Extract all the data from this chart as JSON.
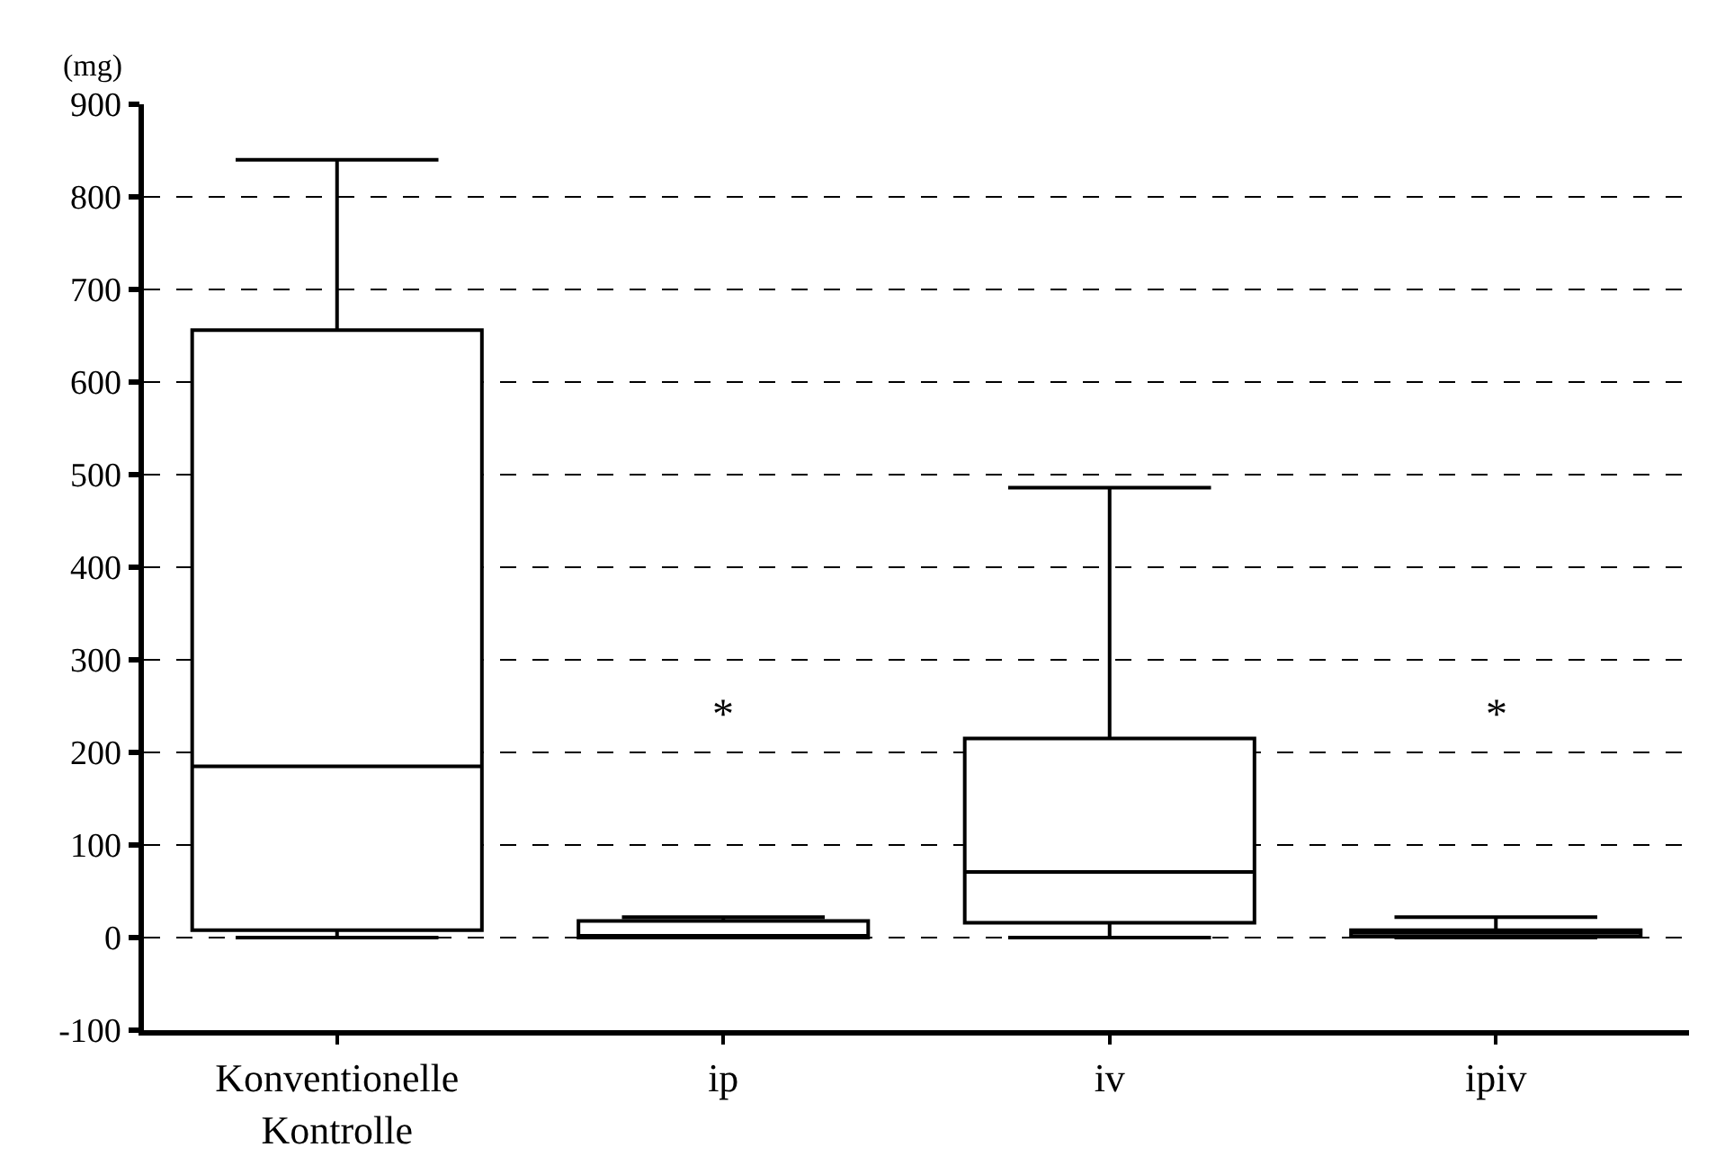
{
  "chart_data": {
    "type": "box",
    "ylabel": "(mg)",
    "categories": [
      "Konventionelle\nKontrolle",
      "ip",
      "iv",
      "ipiv"
    ],
    "boxes": [
      {
        "low": 0,
        "q1": 8,
        "median": 185,
        "q3": 656,
        "high": 840
      },
      {
        "low": 0,
        "q1": 0,
        "median": 2,
        "q3": 18,
        "high": 22
      },
      {
        "low": 0,
        "q1": 16,
        "median": 71,
        "q3": 215,
        "high": 486
      },
      {
        "low": 0,
        "q1": 1,
        "median": 5,
        "q3": 8,
        "high": 22
      }
    ],
    "color": "#000000",
    "ylim": [
      -100,
      900
    ],
    "yticks": [
      -100,
      0,
      100,
      200,
      300,
      400,
      500,
      600,
      700,
      800,
      900
    ],
    "grid": "y",
    "annotations": [
      "*",
      "*"
    ]
  }
}
